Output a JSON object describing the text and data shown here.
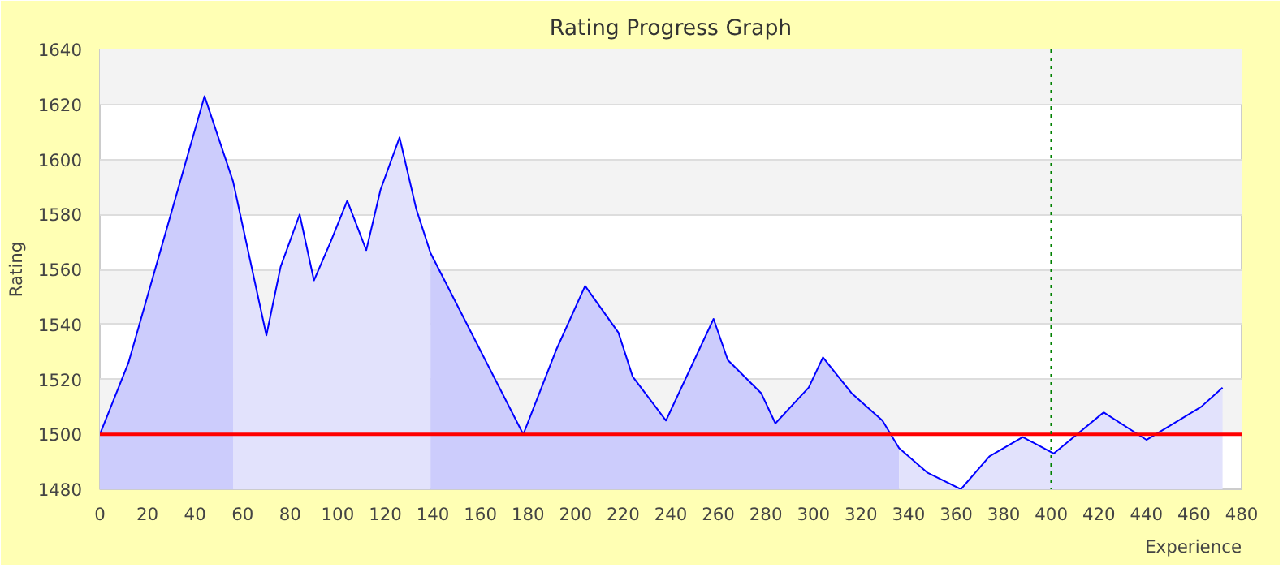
{
  "chart_data": {
    "type": "line",
    "title": "Rating Progress Graph",
    "xlabel": "Experience",
    "ylabel": "Rating",
    "xlim": [
      0,
      480
    ],
    "xticks": [
      0,
      20,
      40,
      60,
      80,
      100,
      120,
      140,
      160,
      180,
      200,
      220,
      240,
      260,
      280,
      300,
      320,
      340,
      360,
      380,
      400,
      420,
      440,
      460,
      480
    ],
    "ylim": [
      1480,
      1640
    ],
    "yticks": [
      1480,
      1500,
      1520,
      1540,
      1560,
      1580,
      1600,
      1620,
      1640
    ],
    "grid": "y",
    "marker": "none",
    "line_style": "solid",
    "series": [
      {
        "type": "area",
        "color": "#ccccfc",
        "x": [
          0,
          12,
          44,
          56
        ],
        "values": [
          1500,
          1526,
          1623,
          1592
        ]
      },
      {
        "type": "area",
        "color": "#e2e2fc",
        "x": [
          56,
          70,
          76,
          84,
          90,
          97,
          104,
          112,
          118,
          126,
          133,
          139
        ],
        "values": [
          1592,
          1536,
          1561,
          1580,
          1556,
          1570,
          1585,
          1567,
          1589,
          1608,
          1582,
          1566
        ]
      },
      {
        "type": "area",
        "color": "#ccccfc",
        "x": [
          139,
          178,
          192,
          204,
          218,
          224,
          238,
          258,
          264,
          278,
          284,
          298,
          304,
          316,
          329,
          336
        ],
        "values": [
          1566,
          1500,
          1531,
          1554,
          1537,
          1521,
          1505,
          1542,
          1527,
          1515,
          1504,
          1517,
          1528,
          1515,
          1505,
          1495
        ]
      },
      {
        "type": "area",
        "color": "#e2e2fc",
        "x": [
          336,
          348,
          362,
          374,
          388,
          401,
          422,
          440,
          463,
          472
        ],
        "values": [
          1495,
          1486,
          1480,
          1492,
          1499,
          1493,
          1508,
          1498,
          1510,
          1517
        ]
      },
      {
        "color": "#0000ff",
        "x": [
          0,
          12,
          44,
          56,
          70,
          76,
          84,
          90,
          97,
          104,
          112,
          118,
          126,
          133,
          139,
          178,
          192,
          204,
          218,
          224,
          238,
          258,
          264,
          278,
          284,
          298,
          304,
          316,
          329,
          336,
          348,
          362,
          374,
          388,
          401,
          422,
          440,
          463,
          472
        ],
        "values": [
          1500,
          1526,
          1623,
          1592,
          1536,
          1561,
          1580,
          1556,
          1570,
          1585,
          1567,
          1589,
          1608,
          1582,
          1566,
          1500,
          1531,
          1554,
          1537,
          1521,
          1505,
          1542,
          1527,
          1515,
          1504,
          1517,
          1528,
          1515,
          1505,
          1495,
          1486,
          1480,
          1492,
          1499,
          1493,
          1508,
          1498,
          1510,
          1517
        ]
      }
    ],
    "ref_lines": [
      {
        "axis": "y",
        "value": 1500,
        "color": "#ff0000",
        "line_style": "solid"
      },
      {
        "axis": "x",
        "value": 400,
        "color": "#008000",
        "line_style": "dotted"
      }
    ]
  }
}
